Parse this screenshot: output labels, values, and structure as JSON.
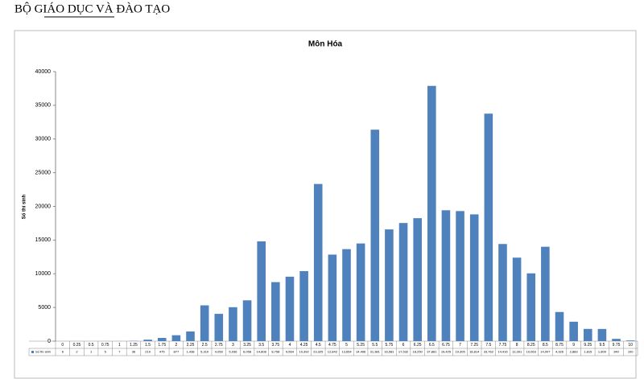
{
  "header": {
    "title": "BỘ GIÁO DỤC VÀ ĐÀO TẠO"
  },
  "chart_data": {
    "type": "bar",
    "title": "Môn Hóa",
    "y_label": "Số thí sinh",
    "series_name": "Số thí sinh",
    "color": "#4f81bd",
    "categories": [
      "0",
      "0.25",
      "0.5",
      "0.75",
      "1",
      "1.25",
      "1.5",
      "1.75",
      "2",
      "2.25",
      "2.5",
      "2.75",
      "3",
      "3.25",
      "3.5",
      "3.75",
      "4",
      "4.25",
      "4.5",
      "4.75",
      "5",
      "5.25",
      "5.5",
      "5.75",
      "6",
      "6.25",
      "6.5",
      "6.75",
      "7",
      "7.25",
      "7.5",
      "7.75",
      "8",
      "8.25",
      "8.5",
      "8.75",
      "9",
      "9.25",
      "9.5",
      "9.75",
      "10"
    ],
    "values": [
      6,
      2,
      1,
      5,
      7,
      36,
      219,
      475,
      877,
      1438,
      5310,
      4050,
      5036,
      6058,
      14808,
      8758,
      9564,
      10392,
      23325,
      12842,
      13654,
      14496,
      31381,
      16581,
      17532,
      18250,
      37881,
      19425,
      19305,
      18814,
      33762,
      14416,
      12391,
      10063,
      14007,
      4326,
      2883,
      1815,
      1809,
      340,
      100
    ],
    "value_labels": [
      "6",
      "2",
      "1",
      "5",
      "7",
      "36",
      "219",
      "475",
      "877",
      "1,438",
      "5,310",
      "4,050",
      "5,036",
      "6,058",
      "14,808",
      "8,758",
      "9,564",
      "10,392",
      "23,325",
      "12,842",
      "13,654",
      "14,496",
      "31,381",
      "16,581",
      "17,532",
      "18,250",
      "37,881",
      "19,425",
      "19,305",
      "18,814",
      "33,762",
      "14,416",
      "12,391",
      "10,063",
      "14,007",
      "4,326",
      "2,883",
      "1,815",
      "1,809",
      "340",
      "100"
    ],
    "ylim": [
      0,
      40000
    ],
    "yticks": [
      0,
      5000,
      10000,
      15000,
      20000,
      25000,
      30000,
      35000,
      40000
    ],
    "grid": false
  }
}
